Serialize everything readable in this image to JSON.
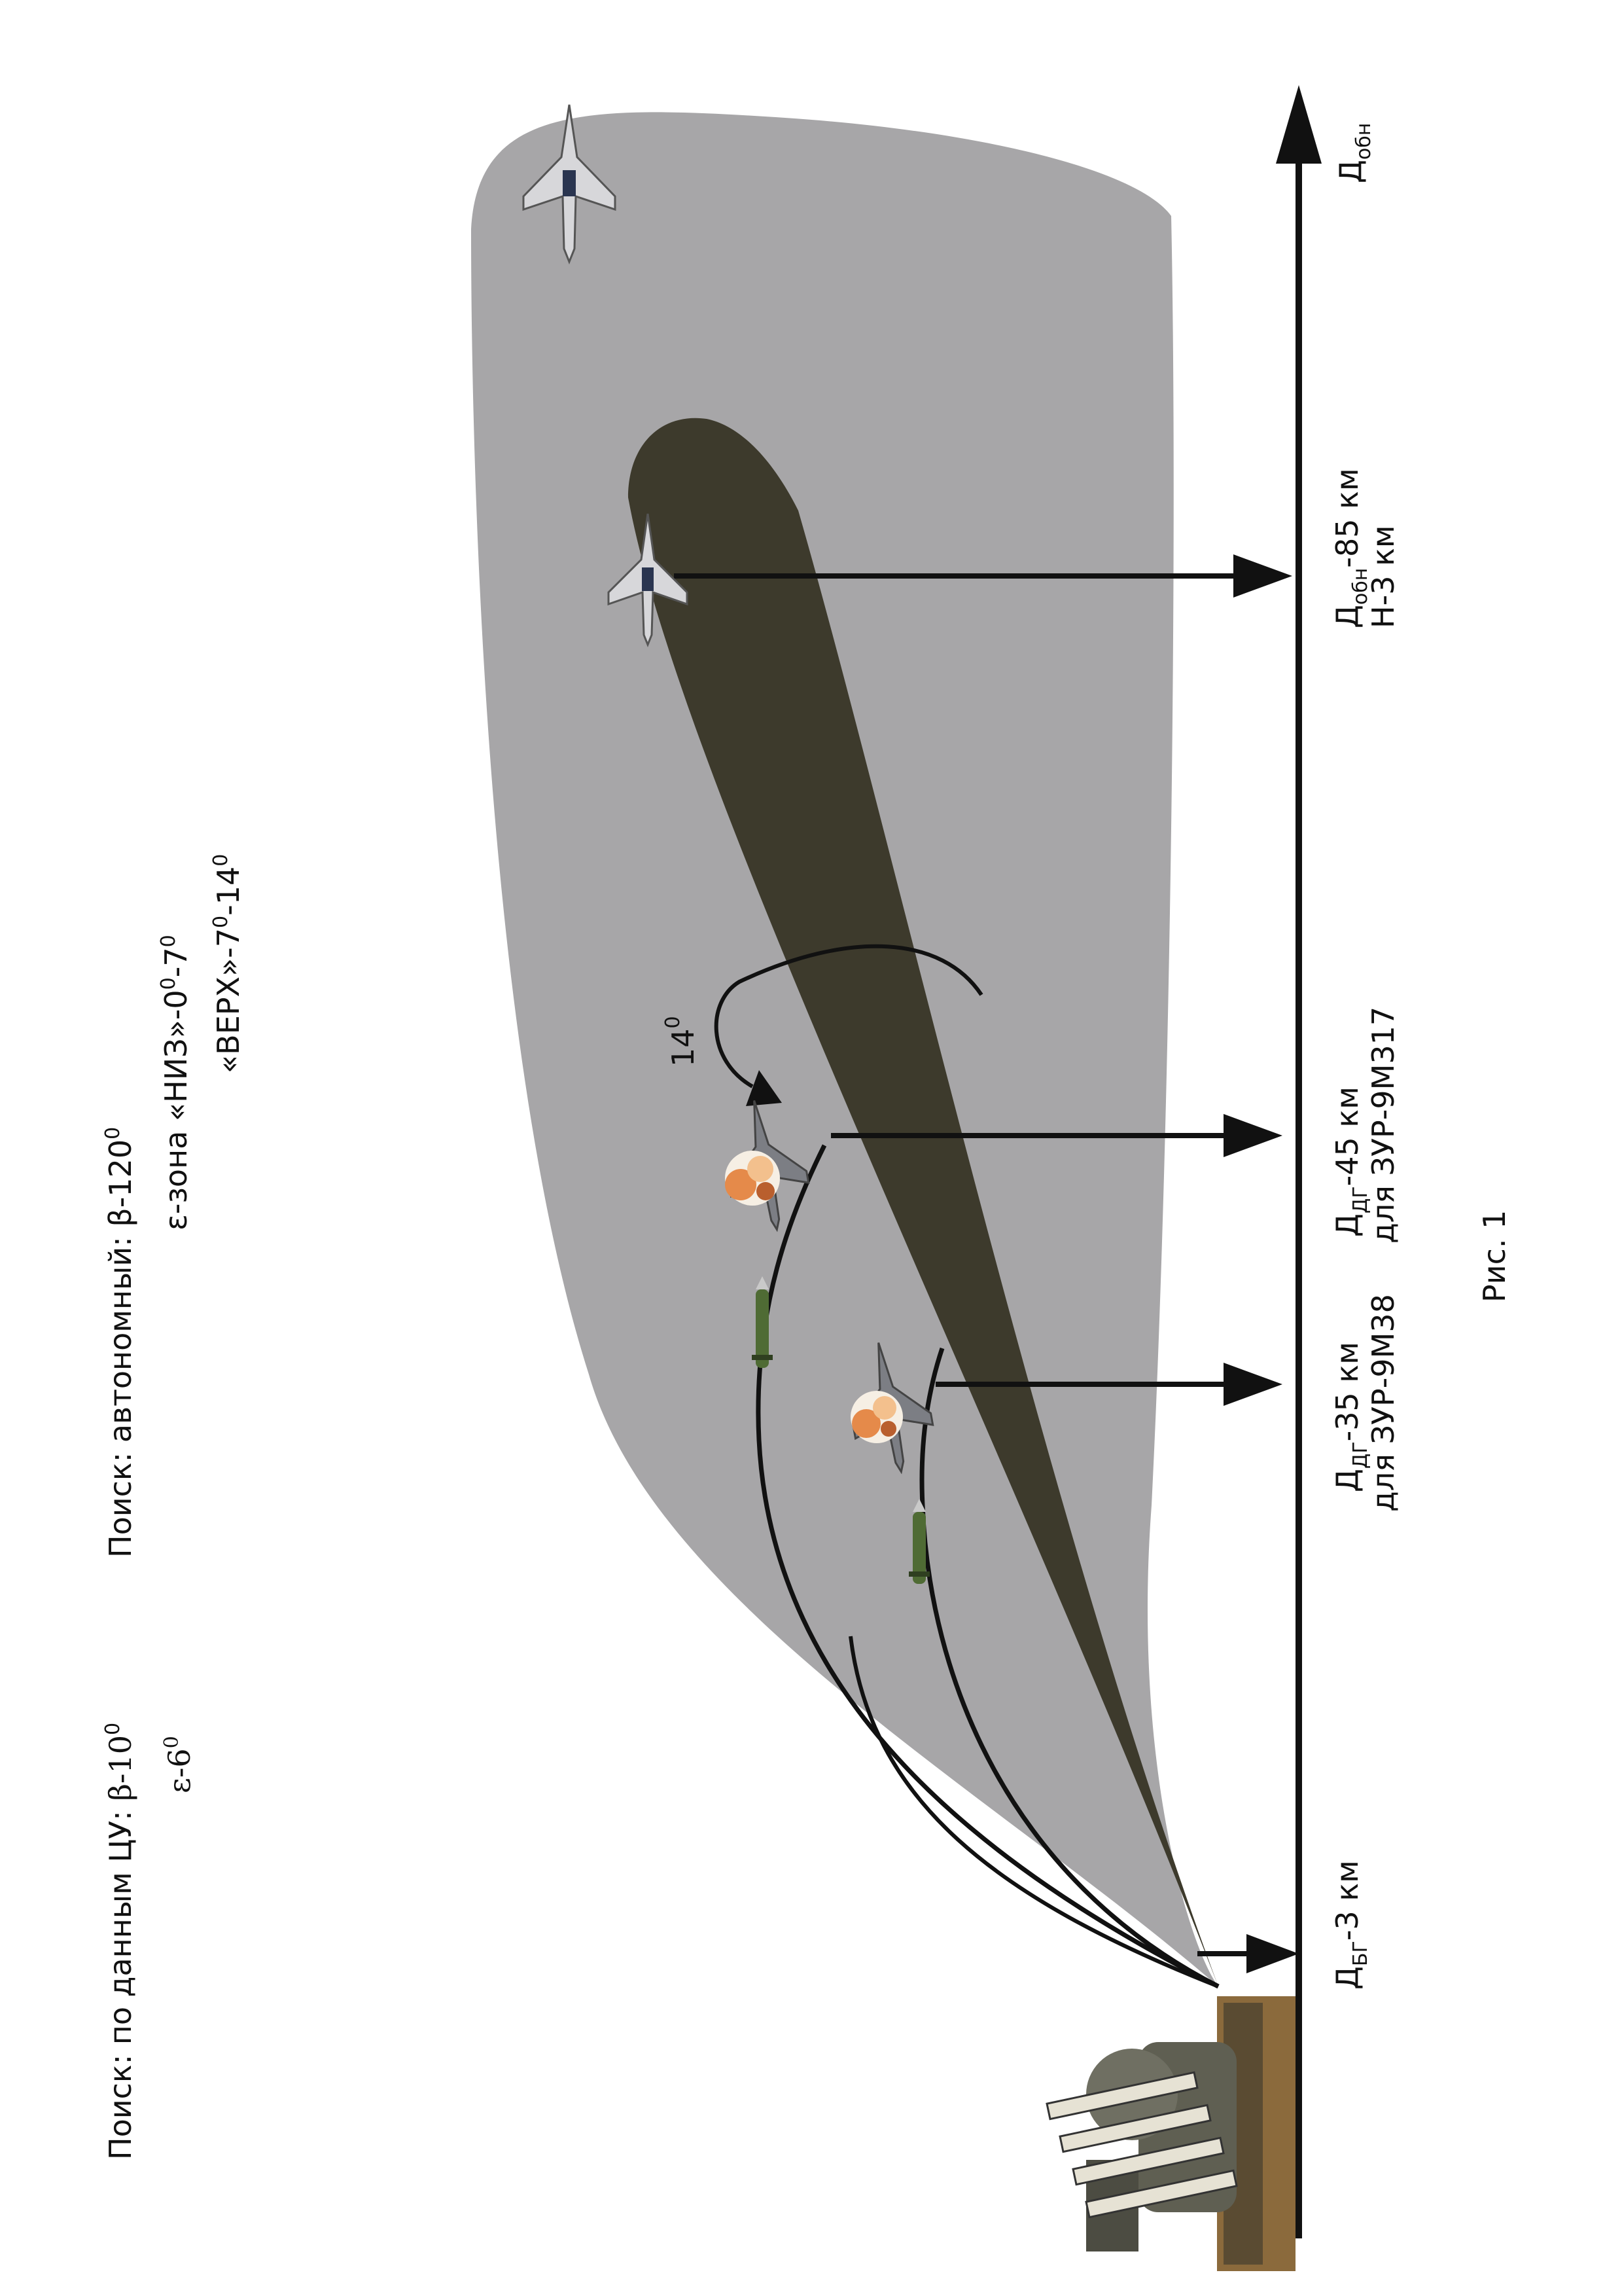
{
  "search_cu": {
    "label": "Поиск: по данным ЦУ:",
    "beta": "β-10",
    "eps": "ε-6",
    "deg": "0"
  },
  "search_auto": {
    "label": "Поиск: автономный:",
    "beta": "β-120",
    "deg": "0",
    "zone_prefix": "ε-зона",
    "niz": "«НИЗ»-0",
    "niz_tail": "-7",
    "verkh": "«ВЕРХ»-7",
    "verkh_tail": "-14"
  },
  "angle": {
    "value": "14",
    "deg": "0"
  },
  "axis_label": {
    "main": "Д",
    "sub": "обн"
  },
  "markers": [
    {
      "main": "Д",
      "sub": "БГ",
      "tail": "-3 км",
      "line2": ""
    },
    {
      "main": "Д",
      "sub": "ДГ",
      "tail": "-35 км",
      "line2": "для ЗУР-9М38"
    },
    {
      "main": "Д",
      "sub": "ДГ",
      "tail": "-45 км",
      "line2": "для ЗУР-9М317"
    },
    {
      "main": "Д",
      "sub": "обн",
      "tail": "-85 км",
      "line2": "Н-3 км"
    }
  ],
  "caption": "Рис. 1",
  "colors": {
    "zone": "#a7a6a8",
    "beam": "#3d3a2c",
    "ink": "#111111"
  },
  "icons": [
    "launcher-vehicle-icon",
    "aircraft-icon",
    "missile-icon",
    "explosion-icon"
  ]
}
